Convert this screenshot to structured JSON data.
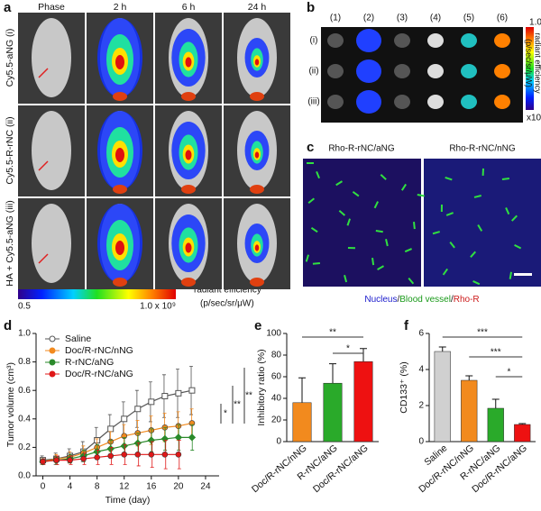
{
  "panel_a": {
    "label": "a",
    "columns": [
      "Phase",
      "2 h",
      "6 h",
      "24 h"
    ],
    "rows": [
      "Cy5.5-aNG (i)",
      "Cy5.5-R-rNC (ii)",
      "HA + Cy5.5-aNG (iii)"
    ],
    "colorbar": {
      "min": "0.5",
      "max": "1.0 x 10⁹",
      "title": "radiant efficiency",
      "unit": "(p/sec/sr/μW)"
    }
  },
  "panel_b": {
    "label": "b",
    "columns": [
      "(1)",
      "(2)",
      "(3)",
      "(4)",
      "(5)",
      "(6)"
    ],
    "rows": [
      "(i)",
      "(ii)",
      "(iii)"
    ],
    "colorbar": {
      "max": "1.0",
      "title": "radiant efficiency",
      "unit": "(p/sec/sr/μW)",
      "scale": "x10⁶"
    }
  },
  "panel_c": {
    "label": "c",
    "titles": [
      "Rho-R-rNC/aNG",
      "Rho-R-rNC/nNG"
    ],
    "caption": [
      "Nucleus",
      "/",
      "Blood vessel",
      "/",
      "Rho-R"
    ],
    "caption_colors": [
      "#1a1acc",
      "#111111",
      "#1a9a1a",
      "#111111",
      "#cc1a1a"
    ]
  },
  "chart_data": [
    {
      "label": "d",
      "type": "line",
      "xlabel": "Time (day)",
      "ylabel": "Tumor volume (cm³)",
      "x": [
        0,
        2,
        4,
        6,
        8,
        10,
        12,
        14,
        16,
        18,
        20,
        22
      ],
      "series": [
        {
          "name": "Saline",
          "color": "#555555",
          "marker": "square",
          "values": [
            0.11,
            0.12,
            0.14,
            0.17,
            0.25,
            0.33,
            0.4,
            0.47,
            0.52,
            0.56,
            0.58,
            0.6
          ],
          "errors": [
            0.03,
            0.04,
            0.05,
            0.07,
            0.09,
            0.1,
            0.12,
            0.13,
            0.14,
            0.15,
            0.17,
            0.17
          ]
        },
        {
          "name": "Doc/R-rNC/nNG",
          "color": "#f28a1e",
          "marker": "circle",
          "values": [
            0.1,
            0.12,
            0.13,
            0.16,
            0.2,
            0.24,
            0.28,
            0.3,
            0.32,
            0.34,
            0.35,
            0.37
          ],
          "errors": [
            0.02,
            0.03,
            0.04,
            0.05,
            0.06,
            0.07,
            0.08,
            0.09,
            0.1,
            0.1,
            0.1,
            0.1
          ]
        },
        {
          "name": "R-rNC/aNG",
          "color": "#2a8a2a",
          "marker": "diamond",
          "values": [
            0.1,
            0.11,
            0.12,
            0.14,
            0.17,
            0.19,
            0.21,
            0.23,
            0.25,
            0.26,
            0.27,
            0.27
          ],
          "errors": [
            0.02,
            0.03,
            0.03,
            0.04,
            0.05,
            0.06,
            0.06,
            0.07,
            0.08,
            0.08,
            0.09,
            0.09
          ]
        },
        {
          "name": "Doc/R-rNC/aNG",
          "color": "#e01818",
          "marker": "circle",
          "values": [
            0.1,
            0.11,
            0.11,
            0.12,
            0.13,
            0.14,
            0.15,
            0.15,
            0.15,
            0.15,
            0.15,
            null
          ],
          "errors": [
            0.02,
            0.03,
            0.03,
            0.04,
            0.05,
            0.06,
            0.07,
            0.08,
            0.09,
            0.1,
            0.1,
            null
          ]
        }
      ],
      "xlim": [
        -1,
        26
      ],
      "xticks": [
        0,
        4,
        8,
        12,
        16,
        20,
        24
      ],
      "ylim": [
        0,
        1.0
      ],
      "yticks": [
        {
          "value": 0,
          "label": "0.0"
        },
        0.2,
        0.4,
        0.6,
        0.8,
        {
          "value": 1.0,
          "label": "1.0"
        }
      ],
      "legend": "upper left",
      "annotations": [
        "*",
        "**",
        "**"
      ]
    },
    {
      "label": "e",
      "type": "bar",
      "ylabel": "Inhibitory ratio (%)",
      "categories": [
        "Doc/R-rNC/nNG",
        "R-rNC/aNG",
        "Doc/R-rNC/aNG"
      ],
      "values": [
        36,
        54,
        74
      ],
      "errors": [
        23,
        18,
        12
      ],
      "colors": [
        "#f28a1e",
        "#2aaa2a",
        "#ee1111"
      ],
      "ylim": [
        0,
        100
      ],
      "yticks": [
        0,
        20,
        40,
        60,
        80,
        100
      ],
      "annotations": [
        "**",
        "*"
      ]
    },
    {
      "label": "f",
      "type": "bar",
      "ylabel": "CD133⁺ (%)",
      "categories": [
        "Saline",
        "Doc/R-rNC/nNG",
        "R-rNC/aNG",
        "Doc/R-rNC/aNG"
      ],
      "values": [
        5.0,
        3.4,
        1.85,
        0.95
      ],
      "errors": [
        0.25,
        0.25,
        0.5,
        0.05
      ],
      "colors": [
        "#d0d0d0",
        "#f28a1e",
        "#2aaa2a",
        "#ee1111"
      ],
      "ylim": [
        0,
        6
      ],
      "yticks": [
        0,
        2,
        4,
        6
      ],
      "annotations": [
        "***",
        "***",
        "*"
      ]
    }
  ]
}
